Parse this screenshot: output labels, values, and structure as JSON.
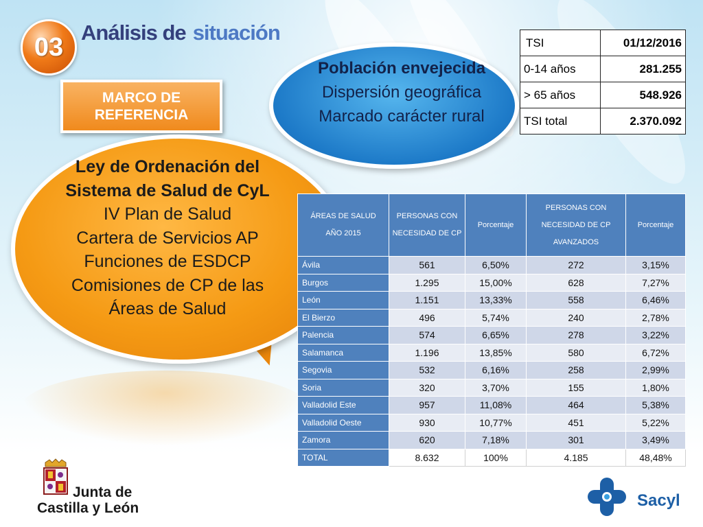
{
  "header": {
    "number": "03",
    "title_part1": "Análisis de",
    "title_part2": "situación",
    "marco_line1": "MARCO DE",
    "marco_line2": "REFERENCIA"
  },
  "blue_bubble": {
    "line1": "Población envejecida",
    "line2": "Dispersión geográfica",
    "line3": "Marcado carácter rural"
  },
  "orange_bubble": {
    "line1": "Ley de Ordenación del",
    "line2": "Sistema de Salud de CyL",
    "line3": "IV Plan de Salud",
    "line4": "Cartera de Servicios AP",
    "line5": "Funciones de ESDCP",
    "line6": "Comisiones de CP de las",
    "line7": "Áreas de Salud"
  },
  "tsi_table": {
    "rows": [
      {
        "label": "TSI",
        "value": "01/12/2016"
      },
      {
        "label": "0-14 años",
        "value": "281.255"
      },
      {
        "label": "> 65 años",
        "value": "548.926"
      },
      {
        "label": "TSI total",
        "value": "2.370.092"
      }
    ]
  },
  "main_table": {
    "headers": {
      "col1_line1": "ÁREAS DE SALUD",
      "col1_line2": "AÑO 2015",
      "col2": "PERSONAS CON NECESIDAD DE CP",
      "col3": "Porcentaje",
      "col4": "PERSONAS CON NECESIDAD DE CP AVANZADOS",
      "col5": "Porcentaje"
    },
    "rows": [
      {
        "area": "Ávila",
        "personas": "561",
        "pct": "6,50%",
        "avanzados": "272",
        "pct2": "3,15%"
      },
      {
        "area": "Burgos",
        "personas": "1.295",
        "pct": "15,00%",
        "avanzados": "628",
        "pct2": "7,27%"
      },
      {
        "area": "León",
        "personas": "1.151",
        "pct": "13,33%",
        "avanzados": "558",
        "pct2": "6,46%"
      },
      {
        "area": "El Bierzo",
        "personas": "496",
        "pct": "5,74%",
        "avanzados": "240",
        "pct2": "2,78%"
      },
      {
        "area": "Palencia",
        "personas": "574",
        "pct": "6,65%",
        "avanzados": "278",
        "pct2": "3,22%"
      },
      {
        "area": "Salamanca",
        "personas": "1.196",
        "pct": "13,85%",
        "avanzados": "580",
        "pct2": "6,72%"
      },
      {
        "area": "Segovia",
        "personas": "532",
        "pct": "6,16%",
        "avanzados": "258",
        "pct2": "2,99%"
      },
      {
        "area": "Soria",
        "personas": "320",
        "pct": "3,70%",
        "avanzados": "155",
        "pct2": "1,80%"
      },
      {
        "area": "Valladolid Este",
        "personas": "957",
        "pct": "11,08%",
        "avanzados": "464",
        "pct2": "5,38%"
      },
      {
        "area": "Valladolid Oeste",
        "personas": "930",
        "pct": "10,77%",
        "avanzados": "451",
        "pct2": "5,22%"
      },
      {
        "area": "Zamora",
        "personas": "620",
        "pct": "7,18%",
        "avanzados": "301",
        "pct2": "3,49%"
      },
      {
        "area": "TOTAL",
        "personas": "8.632",
        "pct": "100%",
        "avanzados": "4.185",
        "pct2": "48,48%"
      }
    ]
  },
  "logos": {
    "jcyl_line1": "Junta de",
    "jcyl_line2": "Castilla y León",
    "sacyl": "Sacyl"
  },
  "colors": {
    "table_header_blue": "#4f81bd",
    "orange": "#f59a14",
    "bubble_blue": "#1d7ac8",
    "title_blue": "#2e3f7a"
  }
}
